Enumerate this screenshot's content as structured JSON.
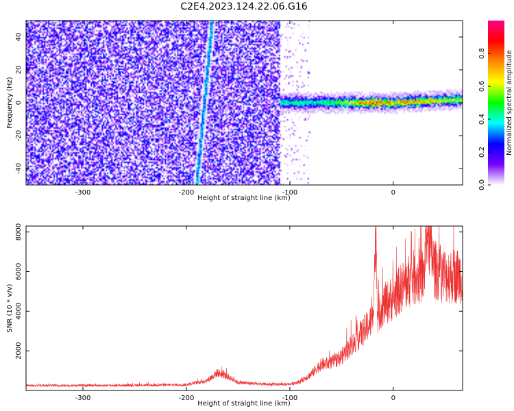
{
  "title": "C2E4.2023.124.22.06.G16",
  "chart_data": [
    {
      "type": "heatmap",
      "xlabel": "Height of straight line (km)",
      "ylabel": "Frequency (Hz)",
      "xlim": [
        -355,
        67
      ],
      "ylim": [
        -50,
        50
      ],
      "x_ticks": [
        -300,
        -200,
        -100,
        0
      ],
      "y_ticks": [
        -40,
        -20,
        0,
        20,
        40
      ],
      "colorbar": {
        "label": "Normalized spectral amplitude",
        "range": [
          0,
          1
        ],
        "ticks": [
          "0.0",
          "0.2",
          "0.4",
          "0.6",
          "0.8"
        ],
        "tick_values": [
          0,
          0.2,
          0.4,
          0.6,
          0.8
        ],
        "colormap": "rainbow (white at 0)",
        "colors": [
          "#ffffff",
          "#7700ff",
          "#0000ff",
          "#00ffff",
          "#00ff00",
          "#ffff00",
          "#ff8800",
          "#ff0000",
          "#ff0088"
        ]
      },
      "features": {
        "noise_region_x": [
          -355,
          -110
        ],
        "noise_mean_amplitude": 0.12,
        "carrier_x": [
          -110,
          67
        ],
        "carrier_frequency_hz": [
          [
            -110,
            0
          ],
          [
            -50,
            0
          ],
          [
            0,
            0
          ],
          [
            67,
            2
          ]
        ],
        "carrier_amplitude": [
          [
            -110,
            0.35
          ],
          [
            -60,
            0.4
          ],
          [
            -20,
            0.8
          ],
          [
            67,
            0.55
          ]
        ],
        "diagonal_streak": [
          [
            -190,
            -50
          ],
          [
            -175,
            50
          ]
        ]
      }
    },
    {
      "type": "line",
      "xlabel": "Height of straight line (km)",
      "ylabel": "SNR (10 * v/v)",
      "xlim": [
        -355,
        67
      ],
      "ylim": [
        0,
        8300
      ],
      "x_ticks": [
        -300,
        -200,
        -100,
        0
      ],
      "y_ticks": [
        2000,
        4000,
        6000,
        8000
      ],
      "series": [
        {
          "color": "#ee3333",
          "x": [
            -355,
            -300,
            -250,
            -200,
            -180,
            -170,
            -160,
            -150,
            -120,
            -100,
            -90,
            -80,
            -70,
            -60,
            -50,
            -40,
            -30,
            -20,
            -17,
            -15,
            -10,
            0,
            10,
            20,
            30,
            32,
            40,
            50,
            60,
            67
          ],
          "y": [
            250,
            250,
            260,
            290,
            500,
            900,
            700,
            400,
            300,
            320,
            450,
            800,
            1300,
            1400,
            1700,
            2300,
            2900,
            3600,
            7800,
            3800,
            4300,
            4700,
            5300,
            5700,
            5800,
            8300,
            6100,
            5800,
            5800,
            5800
          ],
          "noise_amplitude_frac": 0.25
        }
      ]
    }
  ]
}
